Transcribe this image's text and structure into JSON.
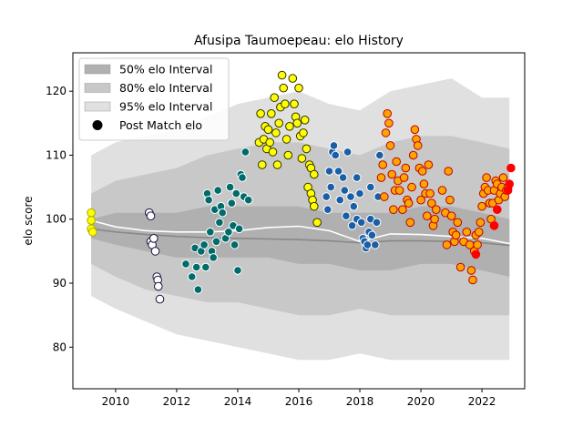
{
  "chart_data": {
    "type": "scatter",
    "title": "Afusipa Taumoepeau: elo History",
    "xlabel": "",
    "ylabel": "elo score",
    "xlim": [
      2008.6,
      2023.4
    ],
    "ylim": [
      73.5,
      126
    ],
    "xticks": [
      2010,
      2012,
      2014,
      2016,
      2018,
      2020,
      2022
    ],
    "yticks": [
      80,
      90,
      100,
      110,
      120
    ],
    "grid": false,
    "legend_position": "top-left",
    "legend": [
      {
        "label": "50% elo Interval",
        "color": "#b0b0b0"
      },
      {
        "label": "80% elo Interval",
        "color": "#c8c8c8"
      },
      {
        "label": "95% elo Interval",
        "color": "#e0e0e0"
      },
      {
        "label": "Post Match elo",
        "color": "#000000"
      }
    ],
    "bands": {
      "x": [
        2009.2,
        2010.0,
        2011.0,
        2012.0,
        2013.0,
        2014.0,
        2015.0,
        2016.0,
        2017.0,
        2018.0,
        2019.0,
        2020.0,
        2021.0,
        2022.0,
        2022.9
      ],
      "p95_upper": [
        110,
        112,
        113,
        114,
        116,
        118,
        119,
        120,
        118,
        117,
        120,
        121,
        122,
        119,
        119
      ],
      "p80_upper": [
        104,
        106,
        107,
        108,
        110,
        111,
        112,
        112,
        111,
        110,
        112,
        113,
        113,
        112,
        111
      ],
      "p50_upper": [
        100,
        101,
        101,
        101,
        102,
        102,
        102,
        102,
        101,
        101,
        101,
        102,
        102,
        101,
        100
      ],
      "p50_lower": [
        97,
        96,
        95,
        94,
        94,
        94,
        94,
        93,
        93,
        92,
        92,
        93,
        93,
        92,
        91
      ],
      "p80_lower": [
        93,
        91,
        89,
        88,
        87,
        87,
        86,
        85,
        85,
        86,
        85,
        85,
        85,
        85,
        85
      ],
      "p95_lower": [
        88,
        86,
        84,
        82,
        81,
        80,
        79,
        78,
        78,
        79,
        78,
        78,
        78,
        78,
        78
      ]
    },
    "median_line": {
      "color": "#888888",
      "x": [
        2009.2,
        2010,
        2011,
        2012,
        2013,
        2014,
        2015,
        2016,
        2017,
        2018,
        2019,
        2020,
        2021,
        2022,
        2022.9
      ],
      "y": [
        98.5,
        98.0,
        97.6,
        97.3,
        97.1,
        97.0,
        96.9,
        96.8,
        96.6,
        96.3,
        96.6,
        96.6,
        96.5,
        96.3,
        95.9
      ]
    },
    "mean_line": {
      "color": "#ffffff",
      "x": [
        2009.2,
        2010,
        2011,
        2012,
        2013,
        2014,
        2015,
        2016,
        2017,
        2018,
        2019,
        2020,
        2021,
        2022,
        2022.9
      ],
      "y": [
        99.8,
        98.8,
        98.2,
        98.0,
        98.0,
        98.2,
        98.7,
        98.9,
        98.2,
        96.5,
        97.7,
        97.6,
        97.3,
        97.0,
        96.2
      ]
    },
    "series": [
      {
        "fill": "#ffff00",
        "stroke": "#aaaa00",
        "points": [
          [
            2009.2,
            101.0
          ],
          [
            2009.2,
            99.8
          ],
          [
            2009.2,
            98.5
          ],
          [
            2009.25,
            98.0
          ]
        ]
      },
      {
        "fill": "#ffffff",
        "stroke": "#1b1440",
        "points": [
          [
            2011.1,
            101.0
          ],
          [
            2011.15,
            100.5
          ],
          [
            2011.15,
            96.5
          ],
          [
            2011.2,
            96.0
          ],
          [
            2011.25,
            97.0
          ],
          [
            2011.3,
            95.0
          ],
          [
            2011.35,
            91.0
          ],
          [
            2011.38,
            90.5
          ],
          [
            2011.4,
            89.5
          ],
          [
            2011.45,
            87.5
          ]
        ]
      },
      {
        "fill": "#006b6b",
        "stroke": "#ffffff",
        "points": [
          [
            2012.3,
            93.0
          ],
          [
            2012.5,
            91.0
          ],
          [
            2012.6,
            95.5
          ],
          [
            2012.65,
            92.5
          ],
          [
            2012.7,
            89.0
          ],
          [
            2012.8,
            95.0
          ],
          [
            2012.9,
            96.0
          ],
          [
            2012.95,
            92.5
          ],
          [
            2013.0,
            104.0
          ],
          [
            2013.05,
            103.0
          ],
          [
            2013.1,
            98.0
          ],
          [
            2013.15,
            95.0
          ],
          [
            2013.2,
            94.0
          ],
          [
            2013.25,
            101.5
          ],
          [
            2013.3,
            96.5
          ],
          [
            2013.35,
            104.5
          ],
          [
            2013.4,
            99.5
          ],
          [
            2013.45,
            102.0
          ],
          [
            2013.5,
            101.0
          ],
          [
            2013.6,
            97.0
          ],
          [
            2013.7,
            98.0
          ],
          [
            2013.75,
            105.0
          ],
          [
            2013.8,
            102.5
          ],
          [
            2013.85,
            99.0
          ],
          [
            2013.9,
            96.0
          ],
          [
            2013.95,
            104.0
          ],
          [
            2014.0,
            92.0
          ],
          [
            2014.05,
            98.5
          ],
          [
            2014.1,
            107.0
          ],
          [
            2014.15,
            106.5
          ],
          [
            2014.2,
            103.5
          ],
          [
            2014.25,
            110.5
          ],
          [
            2014.35,
            103.0
          ]
        ]
      },
      {
        "fill": "#ffff00",
        "stroke": "#333300",
        "points": [
          [
            2014.7,
            112.0
          ],
          [
            2014.75,
            116.5
          ],
          [
            2014.8,
            108.5
          ],
          [
            2014.85,
            112.5
          ],
          [
            2014.9,
            114.5
          ],
          [
            2014.95,
            111.0
          ],
          [
            2015.0,
            114.0
          ],
          [
            2015.05,
            112.0
          ],
          [
            2015.1,
            116.5
          ],
          [
            2015.15,
            110.5
          ],
          [
            2015.2,
            119.0
          ],
          [
            2015.25,
            113.5
          ],
          [
            2015.3,
            108.5
          ],
          [
            2015.35,
            115.0
          ],
          [
            2015.4,
            117.5
          ],
          [
            2015.45,
            122.5
          ],
          [
            2015.5,
            120.5
          ],
          [
            2015.55,
            118.0
          ],
          [
            2015.6,
            112.5
          ],
          [
            2015.65,
            110.0
          ],
          [
            2015.7,
            114.5
          ],
          [
            2015.8,
            122.0
          ],
          [
            2015.85,
            118.0
          ],
          [
            2015.9,
            116.0
          ],
          [
            2015.95,
            115.0
          ],
          [
            2016.0,
            120.5
          ],
          [
            2016.05,
            113.0
          ],
          [
            2016.1,
            109.5
          ],
          [
            2016.15,
            113.5
          ],
          [
            2016.2,
            115.5
          ],
          [
            2016.25,
            111.0
          ],
          [
            2016.3,
            105.0
          ],
          [
            2016.35,
            108.5
          ],
          [
            2016.4,
            104.0
          ],
          [
            2016.45,
            103.0
          ],
          [
            2016.5,
            102.0
          ],
          [
            2016.6,
            99.5
          ],
          [
            2016.4,
            108.0
          ],
          [
            2016.5,
            107.0
          ]
        ]
      },
      {
        "fill": "#1a5fa5",
        "stroke": "#ffffff",
        "points": [
          [
            2016.9,
            103.5
          ],
          [
            2016.95,
            101.5
          ],
          [
            2017.0,
            107.5
          ],
          [
            2017.05,
            105.0
          ],
          [
            2017.1,
            110.5
          ],
          [
            2017.15,
            111.5
          ],
          [
            2017.2,
            110.0
          ],
          [
            2017.3,
            107.5
          ],
          [
            2017.35,
            103.0
          ],
          [
            2017.45,
            106.5
          ],
          [
            2017.5,
            104.5
          ],
          [
            2017.55,
            100.5
          ],
          [
            2017.6,
            110.5
          ],
          [
            2017.7,
            103.5
          ],
          [
            2017.75,
            99.0
          ],
          [
            2017.8,
            102.0
          ],
          [
            2017.9,
            100.0
          ],
          [
            2018.0,
            104.0
          ],
          [
            2018.05,
            99.5
          ],
          [
            2018.1,
            97.0
          ],
          [
            2018.15,
            96.5
          ],
          [
            2018.2,
            95.5
          ],
          [
            2018.25,
            96.0
          ],
          [
            2018.3,
            98.0
          ],
          [
            2018.35,
            100.0
          ],
          [
            2018.4,
            97.5
          ],
          [
            2018.5,
            96.0
          ],
          [
            2018.55,
            99.5
          ],
          [
            2018.6,
            103.5
          ],
          [
            2018.65,
            110.0
          ],
          [
            2017.9,
            106.5
          ],
          [
            2018.35,
            105.0
          ]
        ]
      },
      {
        "fill": "#ffa500",
        "stroke": "#c00000",
        "points": [
          [
            2018.7,
            106.5
          ],
          [
            2018.75,
            108.5
          ],
          [
            2018.8,
            103.5
          ],
          [
            2018.85,
            113.5
          ],
          [
            2018.9,
            116.5
          ],
          [
            2018.95,
            115.0
          ],
          [
            2019.0,
            111.5
          ],
          [
            2019.05,
            107.0
          ],
          [
            2019.1,
            101.5
          ],
          [
            2019.15,
            104.5
          ],
          [
            2019.2,
            109.0
          ],
          [
            2019.25,
            106.0
          ],
          [
            2019.3,
            104.5
          ],
          [
            2019.4,
            101.5
          ],
          [
            2019.45,
            106.5
          ],
          [
            2019.5,
            108.0
          ],
          [
            2019.55,
            103.0
          ],
          [
            2019.6,
            102.5
          ],
          [
            2019.65,
            99.5
          ],
          [
            2019.7,
            105.0
          ],
          [
            2019.75,
            110.0
          ],
          [
            2019.8,
            114.0
          ],
          [
            2019.85,
            112.5
          ],
          [
            2019.9,
            111.5
          ],
          [
            2019.95,
            108.0
          ],
          [
            2020.0,
            103.0
          ],
          [
            2020.05,
            107.5
          ],
          [
            2020.1,
            105.5
          ],
          [
            2020.15,
            104.0
          ],
          [
            2020.2,
            100.5
          ],
          [
            2020.25,
            108.5
          ],
          [
            2020.3,
            104.0
          ],
          [
            2020.35,
            102.5
          ],
          [
            2020.4,
            99.0
          ],
          [
            2020.45,
            100.0
          ],
          [
            2020.5,
            101.5
          ],
          [
            2020.7,
            104.5
          ],
          [
            2020.8,
            101.0
          ],
          [
            2020.85,
            96.0
          ],
          [
            2020.9,
            107.5
          ],
          [
            2020.95,
            103.0
          ],
          [
            2021.0,
            100.5
          ],
          [
            2021.05,
            98.0
          ],
          [
            2021.1,
            96.5
          ],
          [
            2021.15,
            97.5
          ],
          [
            2021.2,
            99.5
          ],
          [
            2021.3,
            92.5
          ],
          [
            2021.4,
            96.5
          ],
          [
            2021.5,
            98.0
          ],
          [
            2021.6,
            96.0
          ],
          [
            2021.65,
            92.0
          ],
          [
            2021.7,
            90.5
          ],
          [
            2021.75,
            95.0
          ],
          [
            2021.8,
            97.5
          ],
          [
            2021.85,
            96.0
          ],
          [
            2021.9,
            98.0
          ],
          [
            2021.95,
            99.5
          ],
          [
            2022.0,
            102.0
          ],
          [
            2022.05,
            104.0
          ],
          [
            2022.1,
            105.0
          ],
          [
            2022.15,
            106.5
          ],
          [
            2022.2,
            104.5
          ],
          [
            2022.25,
            102.5
          ],
          [
            2022.3,
            100.0
          ],
          [
            2022.35,
            102.5
          ],
          [
            2022.4,
            104.5
          ],
          [
            2022.45,
            106.0
          ],
          [
            2022.5,
            105.5
          ],
          [
            2022.55,
            103.0
          ],
          [
            2022.6,
            104.0
          ],
          [
            2022.65,
            105.0
          ],
          [
            2022.7,
            106.5
          ],
          [
            2022.75,
            103.5
          ],
          [
            2022.8,
            104.5
          ],
          [
            2022.85,
            105.0
          ]
        ]
      },
      {
        "fill": "#ff0000",
        "stroke": "#ff0000",
        "points": [
          [
            2021.8,
            94.5
          ],
          [
            2022.4,
            99.0
          ],
          [
            2022.5,
            101.5
          ],
          [
            2022.85,
            104.5
          ],
          [
            2022.9,
            105.5
          ],
          [
            2022.95,
            108.0
          ]
        ]
      }
    ]
  }
}
